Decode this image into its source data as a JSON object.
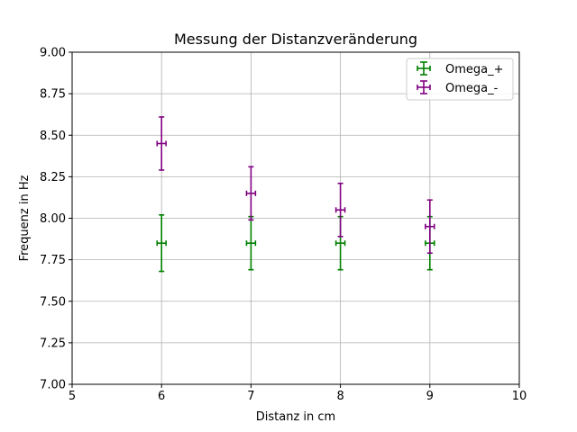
{
  "chart_data": {
    "type": "scatter",
    "title": "Messung der Distanzveränderung",
    "xlabel": "Distanz in cm",
    "ylabel": "Frequenz in Hz",
    "xlim": [
      5,
      10
    ],
    "ylim": [
      7.0,
      9.0
    ],
    "xticks": [
      "5",
      "6",
      "7",
      "8",
      "9",
      "10"
    ],
    "yticks": [
      "7.00",
      "7.25",
      "7.50",
      "7.75",
      "8.00",
      "8.25",
      "8.50",
      "8.75",
      "9.00"
    ],
    "grid": true,
    "legend_position": "top-right",
    "series": [
      {
        "name": "Omega_+",
        "color": "#008000",
        "x": [
          6,
          7,
          8,
          9
        ],
        "y": [
          7.85,
          7.85,
          7.85,
          7.85
        ],
        "yerr": [
          0.17,
          0.16,
          0.16,
          0.16
        ],
        "xerr": [
          0.05,
          0.05,
          0.05,
          0.05
        ]
      },
      {
        "name": "Omega_-",
        "color": "#800080",
        "x": [
          6,
          7,
          8,
          9
        ],
        "y": [
          8.45,
          8.15,
          8.05,
          7.95
        ],
        "yerr": [
          0.16,
          0.16,
          0.16,
          0.16
        ],
        "xerr": [
          0.05,
          0.05,
          0.05,
          0.05
        ]
      }
    ]
  }
}
